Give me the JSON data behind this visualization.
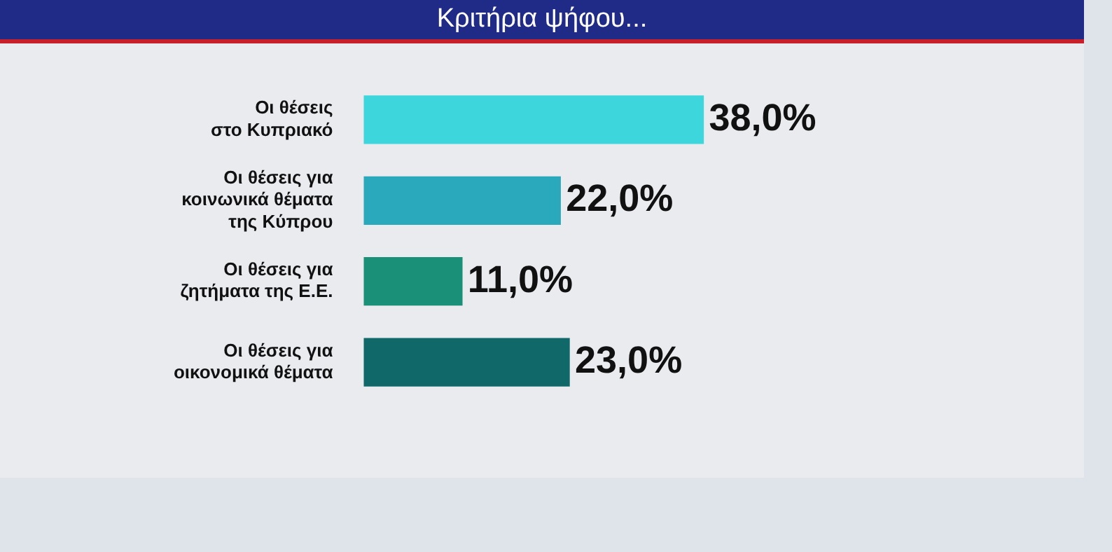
{
  "chart_data": {
    "type": "bar",
    "orientation": "horizontal",
    "title": "Κριτήρια ψήφου...",
    "categories": [
      "Οι θέσεις\nστο Κυπριακό",
      "Οι θέσεις για\nκοινωνικά θέματα\nτης Κύπρου",
      "Οι θέσεις για\nζητήματα της Ε.Ε.",
      "Οι θέσεις για\nοικονομικά θέματα"
    ],
    "values": [
      38,
      22,
      11,
      23
    ],
    "colors": [
      "#3dd6dc",
      "#2aa8bc",
      "#1a9078",
      "#116868"
    ],
    "value_labels": [
      "38,0%",
      "22,0%",
      "11,0%",
      "23,0%"
    ],
    "legend": false
  }
}
